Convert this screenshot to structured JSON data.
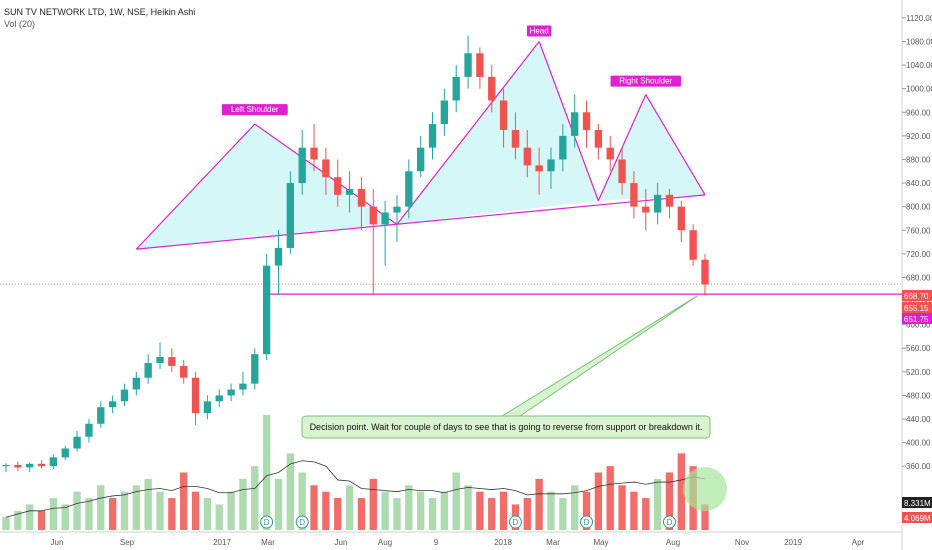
{
  "header": {
    "title": "SUN TV NETWORK LTD, 1W, NSE, Heikin Ashi",
    "volume_label": "Vol (20)"
  },
  "colors": {
    "up": "#26a69a",
    "down": "#ef5350",
    "vol_up": "#a5d6a7",
    "vol_down": "#ef5350",
    "pattern": "#e020d0",
    "pattern_fill": "#b2f0f0",
    "note_fill": "#d9f2d0",
    "note_stroke": "#7ac27a"
  },
  "chart_data": {
    "type": "candlestick",
    "price_axis": {
      "ticks": [
        "1120.00",
        "1080.00",
        "1040.00",
        "1000.00",
        "960.00",
        "920.00",
        "880.00",
        "840.00",
        "800.00",
        "760.00",
        "720.00",
        "680.00",
        "640.00",
        "600.00",
        "560.00",
        "520.00",
        "480.00",
        "440.00",
        "400.00",
        "360.00"
      ],
      "tick_values": [
        1120,
        1080,
        1040,
        1000,
        960,
        920,
        880,
        840,
        800,
        760,
        720,
        680,
        640,
        600,
        560,
        520,
        480,
        440,
        400,
        360
      ],
      "min": 340,
      "max": 1130
    },
    "time_axis": {
      "labels": [
        "Jun",
        "Sep",
        "2017",
        "Mar",
        "Jun",
        "Aug",
        "9",
        "2018",
        "Mar",
        "May",
        "Aug",
        "Nov",
        "2019",
        "Apr"
      ]
    },
    "price_tags": [
      {
        "label": "668.70",
        "value": 668.7,
        "color": "#ef5350"
      },
      {
        "label": "655.15",
        "value": 655.15,
        "color": "#ef5350"
      },
      {
        "label": "651.75",
        "value": 651.75,
        "color": "#e020d0"
      }
    ],
    "volume_tags": [
      {
        "label": "8.331M",
        "color": "#222222"
      },
      {
        "label": "4.069M",
        "color": "#ef5350"
      }
    ],
    "annotations": {
      "left_shoulder": "Left Shoulder",
      "head": "Head",
      "right_shoulder": "Right Shoulder",
      "note": "Decision point. Wait for couple of days to see that is going to reverse from support or breakdown it."
    },
    "support_level": 651.75,
    "pattern_points": {
      "ls_start": [
        11,
        728
      ],
      "ls_top": [
        21,
        940
      ],
      "ls_end": [
        33,
        770
      ],
      "head_start": [
        33,
        770
      ],
      "head_top": [
        45,
        1080
      ],
      "head_end": [
        50,
        810
      ],
      "rs_top": [
        54,
        990
      ],
      "rs_end": [
        59,
        820
      ],
      "neckline_start": [
        11,
        728
      ],
      "neckline_end": [
        59,
        820
      ]
    },
    "markers": [
      "D",
      "D",
      "D",
      "D",
      "D"
    ],
    "candles": [
      [
        360,
        365,
        350,
        362
      ],
      [
        362,
        368,
        352,
        358
      ],
      [
        358,
        366,
        350,
        364
      ],
      [
        364,
        370,
        356,
        360
      ],
      [
        360,
        380,
        355,
        375
      ],
      [
        375,
        395,
        370,
        390
      ],
      [
        390,
        420,
        385,
        410
      ],
      [
        410,
        440,
        400,
        432
      ],
      [
        432,
        470,
        425,
        460
      ],
      [
        460,
        480,
        450,
        470
      ],
      [
        470,
        500,
        462,
        490
      ],
      [
        490,
        520,
        480,
        510
      ],
      [
        510,
        550,
        500,
        535
      ],
      [
        535,
        570,
        525,
        545
      ],
      [
        545,
        560,
        520,
        530
      ],
      [
        530,
        540,
        500,
        510
      ],
      [
        510,
        520,
        430,
        450
      ],
      [
        450,
        480,
        440,
        470
      ],
      [
        470,
        490,
        460,
        480
      ],
      [
        480,
        500,
        470,
        490
      ],
      [
        490,
        520,
        480,
        500
      ],
      [
        500,
        560,
        490,
        550
      ],
      [
        550,
        720,
        540,
        700
      ],
      [
        700,
        760,
        650,
        730
      ],
      [
        730,
        860,
        720,
        840
      ],
      [
        840,
        930,
        820,
        900
      ],
      [
        900,
        940,
        860,
        880
      ],
      [
        880,
        900,
        820,
        850
      ],
      [
        850,
        880,
        800,
        820
      ],
      [
        820,
        860,
        790,
        830
      ],
      [
        830,
        850,
        760,
        800
      ],
      [
        800,
        830,
        650,
        770
      ],
      [
        770,
        810,
        700,
        790
      ],
      [
        790,
        820,
        740,
        800
      ],
      [
        800,
        880,
        780,
        860
      ],
      [
        860,
        920,
        850,
        900
      ],
      [
        900,
        960,
        880,
        940
      ],
      [
        940,
        1000,
        920,
        980
      ],
      [
        980,
        1040,
        960,
        1020
      ],
      [
        1020,
        1090,
        1000,
        1060
      ],
      [
        1060,
        1070,
        1000,
        1020
      ],
      [
        1020,
        1040,
        960,
        980
      ],
      [
        980,
        1000,
        900,
        930
      ],
      [
        930,
        960,
        880,
        900
      ],
      [
        900,
        930,
        850,
        870
      ],
      [
        870,
        900,
        820,
        860
      ],
      [
        860,
        900,
        830,
        880
      ],
      [
        880,
        940,
        860,
        920
      ],
      [
        920,
        990,
        900,
        960
      ],
      [
        960,
        980,
        900,
        930
      ],
      [
        930,
        940,
        880,
        900
      ],
      [
        900,
        920,
        860,
        880
      ],
      [
        880,
        900,
        820,
        840
      ],
      [
        840,
        860,
        780,
        800
      ],
      [
        800,
        830,
        760,
        790
      ],
      [
        790,
        840,
        770,
        820
      ],
      [
        820,
        830,
        780,
        800
      ],
      [
        800,
        810,
        740,
        760
      ],
      [
        760,
        770,
        700,
        710
      ],
      [
        710,
        720,
        650,
        668
      ]
    ],
    "volumes": [
      2,
      3,
      4,
      3,
      5,
      4,
      6,
      5,
      7,
      5,
      6,
      7,
      8,
      6,
      5,
      9,
      6,
      5,
      4,
      6,
      8,
      10,
      18,
      8,
      12,
      9,
      7,
      6,
      5,
      7,
      5,
      8,
      6,
      5,
      7,
      6,
      5,
      6,
      9,
      7,
      6,
      5,
      6,
      4,
      5,
      8,
      6,
      5,
      7,
      6,
      9,
      10,
      7,
      6,
      5,
      8,
      9,
      12,
      10,
      4
    ],
    "volume_up": [
      1,
      1,
      1,
      0,
      1,
      1,
      1,
      1,
      1,
      0,
      1,
      1,
      1,
      1,
      0,
      0,
      0,
      1,
      1,
      1,
      1,
      1,
      1,
      1,
      1,
      1,
      0,
      0,
      0,
      1,
      0,
      0,
      1,
      1,
      1,
      1,
      1,
      1,
      1,
      1,
      0,
      0,
      0,
      0,
      0,
      0,
      1,
      1,
      1,
      0,
      0,
      0,
      0,
      0,
      0,
      1,
      0,
      0,
      0,
      0
    ]
  }
}
